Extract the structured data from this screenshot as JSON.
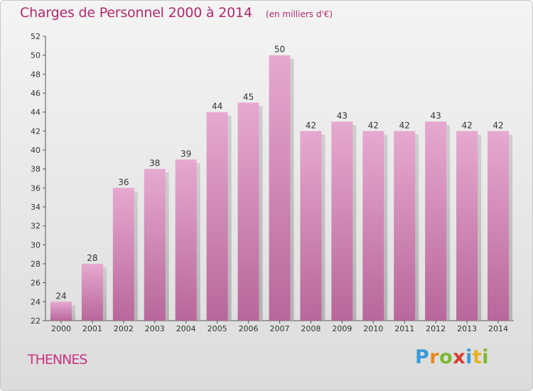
{
  "title": "Charges de Personnel 2000 à 2014",
  "subtitle": "(en milliers d'€)",
  "commune": "THENNES",
  "brand": {
    "letters": [
      "P",
      "r",
      "o",
      "x",
      "i",
      "t",
      "i"
    ],
    "colors": [
      "#3a9ad9",
      "#e8891e",
      "#7cb82f",
      "#d93a2f",
      "#3a9ad9",
      "#e8b01e",
      "#7cb82f"
    ]
  },
  "colors": {
    "accent": "#b0286e",
    "bar_top": "#e6a9cf",
    "bar_bottom": "#b8679a"
  },
  "chart_data": {
    "type": "bar",
    "categories": [
      "2000",
      "2001",
      "2002",
      "2003",
      "2004",
      "2005",
      "2006",
      "2007",
      "2008",
      "2009",
      "2010",
      "2011",
      "2012",
      "2013",
      "2014"
    ],
    "values": [
      24,
      28,
      36,
      38,
      39,
      44,
      45,
      50,
      42,
      43,
      42,
      42,
      43,
      42,
      42
    ],
    "ylim": [
      22,
      52
    ],
    "yticks": [
      22,
      24,
      26,
      28,
      30,
      32,
      34,
      36,
      38,
      40,
      42,
      44,
      46,
      48,
      50,
      52
    ],
    "grid": false,
    "legend": "none"
  }
}
